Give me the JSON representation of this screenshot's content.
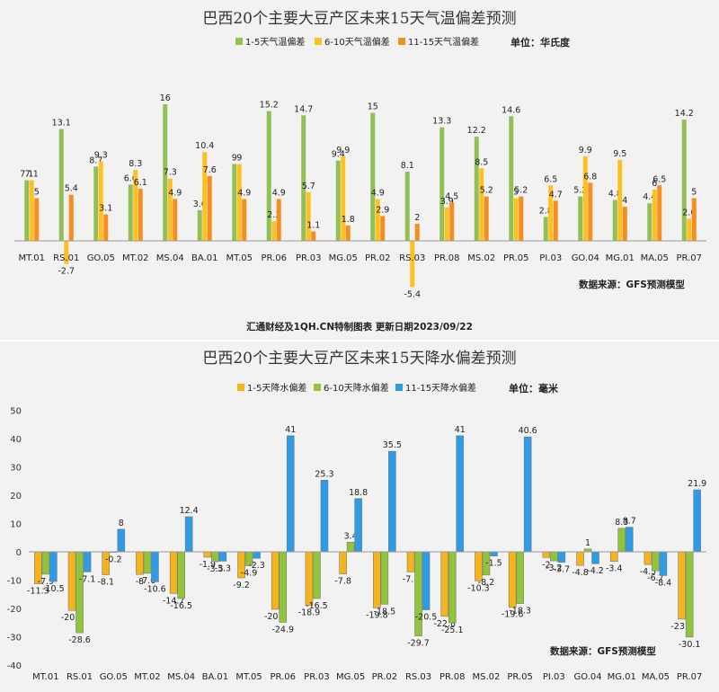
{
  "chart_data": [
    {
      "type": "bar",
      "title": "巴西20个主要大豆产区未来15天气温偏差预测",
      "unit": "单位：华氏度",
      "source": "数据来源：GFS预测模型",
      "footer": "汇通财经及1QH.CN特制图表 更新日期2023/09/22",
      "categories": [
        "MT.01",
        "RS.01",
        "GO.05",
        "MT.02",
        "MS.04",
        "BA.01",
        "MT.05",
        "PR.06",
        "PR.03",
        "MG.05",
        "PR.02",
        "RS.03",
        "PR.08",
        "MS.02",
        "PR.05",
        "PI.03",
        "GO.04",
        "MG.01",
        "MA.05",
        "PR.07"
      ],
      "series": [
        {
          "name": "1-5天气温偏差",
          "color": "#92c057",
          "values": [
            7.1,
            13.1,
            8.7,
            6.6,
            16,
            3.6,
            9,
            15.2,
            14.7,
            9.4,
            15,
            8.1,
            13.3,
            12.2,
            14.6,
            2.8,
            5.2,
            4.8,
            4.4,
            14.2
          ]
        },
        {
          "name": "6-10天气温偏差",
          "color": "#ffc022",
          "values": [
            7.1,
            -2.7,
            9.3,
            8.3,
            7.3,
            10.4,
            9,
            2.3,
            5.7,
            9.9,
            4.9,
            -5.4,
            3.9,
            8.5,
            5,
            6.5,
            9.9,
            9.5,
            6,
            2.6
          ]
        },
        {
          "name": "11-15天气温偏差",
          "color": "#f68d1e",
          "values": [
            5,
            5.4,
            3.1,
            6.1,
            4.9,
            7.6,
            4.9,
            4.9,
            1.1,
            1.8,
            2.9,
            2,
            4.5,
            5.2,
            5.2,
            4.7,
            6.8,
            4,
            6.5,
            5
          ]
        }
      ],
      "ylim": [
        -7,
        18
      ],
      "xlabel": "",
      "ylabel": "",
      "grid": false,
      "legend": "top"
    },
    {
      "type": "bar",
      "title": "巴西20个主要大豆产区未来15天降水偏差预测",
      "unit": "单位：毫米",
      "source": "数据来源：GFS预测模型",
      "categories": [
        "MT.01",
        "RS.01",
        "GO.05",
        "MT.02",
        "MS.04",
        "BA.01",
        "MT.05",
        "PR.06",
        "PR.03",
        "MG.05",
        "PR.02",
        "RS.03",
        "PR.08",
        "MS.02",
        "PR.05",
        "PI.03",
        "GO.04",
        "MG.01",
        "MA.05",
        "PR.07"
      ],
      "series": [
        {
          "name": "1-5天降水偏差",
          "color": "#f5b41c",
          "values": [
            -11.3,
            -20.7,
            -8.1,
            -8,
            -14.7,
            -1.9,
            -9.2,
            -20.3,
            -18.9,
            -7.8,
            -19.8,
            -7.1,
            -22.8,
            -10.3,
            -19.6,
            -2,
            -4.8,
            -3.4,
            -4.5,
            -23.8
          ]
        },
        {
          "name": "6-10天降水偏差",
          "color": "#8fc43b",
          "values": [
            -7.9,
            -28.6,
            -0.2,
            -7.6,
            -16.5,
            -3.5,
            -4.9,
            -24.9,
            -16.5,
            3.4,
            -18.5,
            -29.7,
            -25.1,
            -8.2,
            -18.3,
            -3.2,
            1,
            8.3,
            -6.7,
            -30.1
          ]
        },
        {
          "name": "11-15天降水偏差",
          "color": "#2e9be6",
          "values": [
            -10.5,
            -7.1,
            8,
            -10.6,
            12.4,
            -3.3,
            -2.3,
            41,
            25.3,
            18.8,
            35.5,
            -20.5,
            41,
            -1.5,
            40.6,
            -3.7,
            -4.2,
            8.7,
            -8.4,
            21.9
          ]
        }
      ],
      "yticks": [
        -40,
        -30,
        -20,
        -10,
        0,
        10,
        20,
        30,
        40,
        50
      ],
      "ylim": [
        -40,
        50
      ],
      "xlabel": "",
      "ylabel": "",
      "grid": false,
      "legend": "top"
    }
  ]
}
